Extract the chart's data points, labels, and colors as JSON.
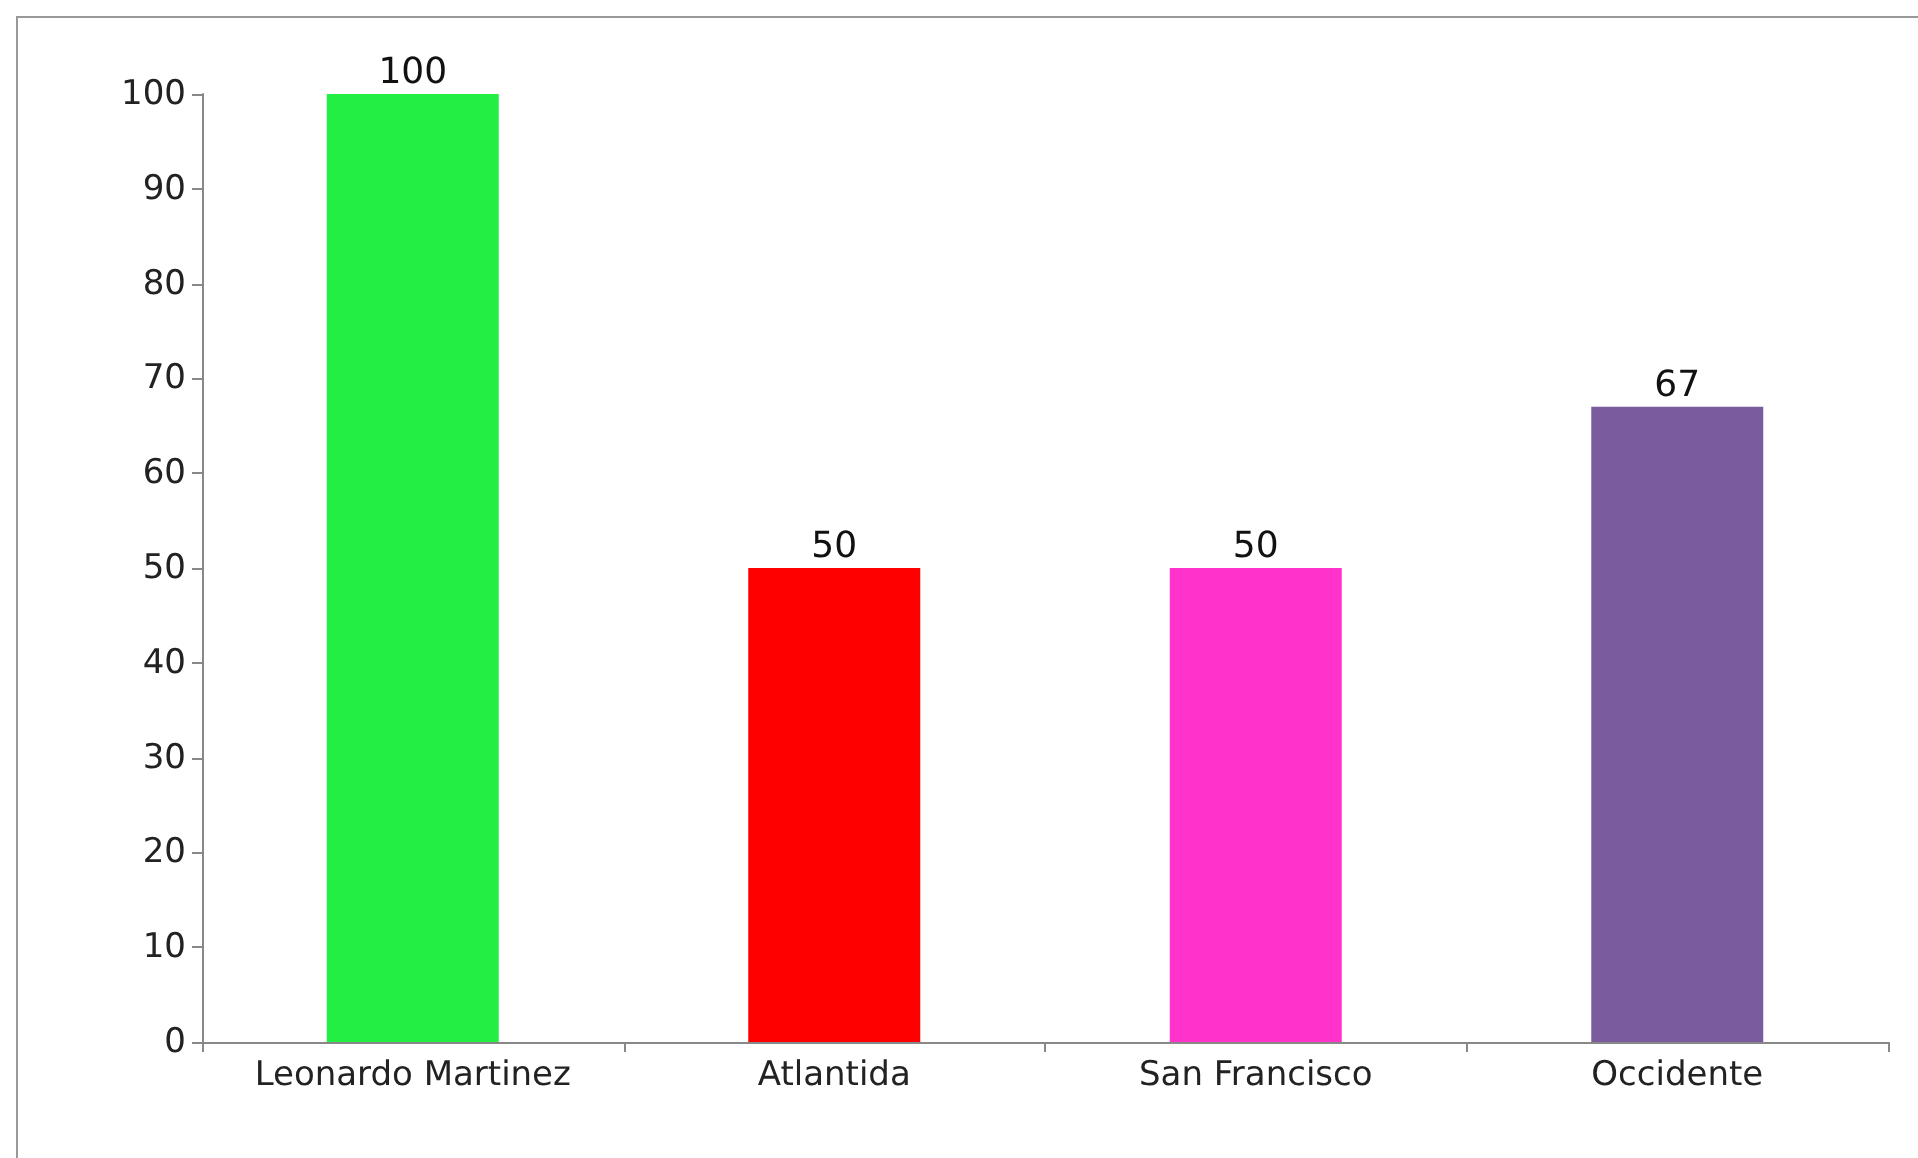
{
  "chart_data": {
    "type": "bar",
    "categories": [
      "Leonardo Martinez",
      "Atlantida",
      "San Francisco",
      "Occidente"
    ],
    "values": [
      100,
      50,
      50,
      67
    ],
    "colors": [
      "#22ee44",
      "#ff0000",
      "#ff33cc",
      "#7a5c9e"
    ],
    "ylim": [
      0,
      100
    ],
    "yticks": [
      0,
      10,
      20,
      30,
      40,
      50,
      60,
      70,
      80,
      90,
      100
    ],
    "grid": false,
    "data_labels": true
  }
}
